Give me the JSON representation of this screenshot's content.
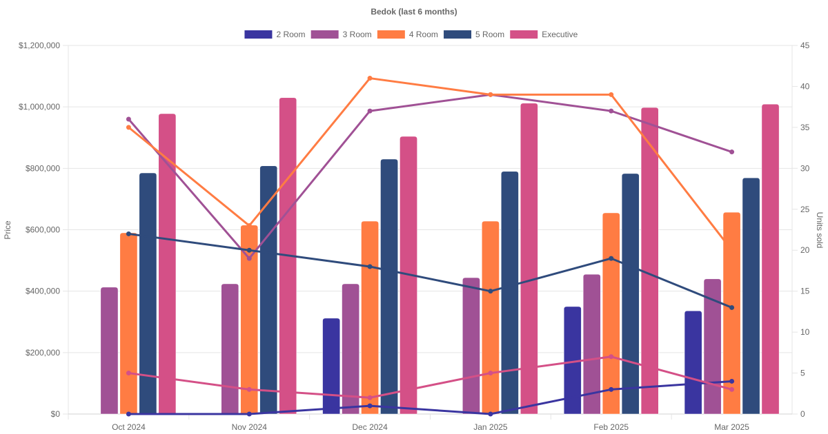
{
  "chart_data": {
    "type": "bar",
    "title": "Bedok (last 6 months)",
    "categories": [
      "Oct 2024",
      "Nov 2024",
      "Dec 2024",
      "Jan 2025",
      "Feb 2025",
      "Mar 2025"
    ],
    "left_axis": {
      "label": "Price",
      "range": [
        0,
        1200000
      ],
      "ticks": [
        "$0",
        "$200,000",
        "$400,000",
        "$600,000",
        "$800,000",
        "$1,000,000",
        "$1,200,000"
      ],
      "tick_values": [
        0,
        200000,
        400000,
        600000,
        800000,
        1000000,
        1200000
      ]
    },
    "right_axis": {
      "label": "Units sold",
      "range": [
        0,
        45
      ],
      "ticks": [
        "0",
        "5",
        "10",
        "15",
        "20",
        "25",
        "30",
        "35",
        "40",
        "45"
      ],
      "tick_values": [
        0,
        5,
        10,
        15,
        20,
        25,
        30,
        35,
        40,
        45
      ]
    },
    "grid": true,
    "legend_position": "top-center",
    "series": [
      {
        "name": "2 Room",
        "color": "#3a35a0",
        "price": [
          null,
          null,
          312000,
          null,
          350000,
          336000
        ],
        "units_sold": [
          0,
          0,
          1,
          0,
          3,
          4
        ]
      },
      {
        "name": "3 Room",
        "color": "#a05195",
        "price": [
          413000,
          424000,
          424000,
          444000,
          455000,
          440000
        ],
        "units_sold": [
          36,
          19,
          37,
          39,
          37,
          32
        ]
      },
      {
        "name": "4 Room",
        "color": "#ff7c43",
        "price": [
          590000,
          615000,
          628000,
          628000,
          655000,
          657000
        ],
        "units_sold": [
          35,
          23,
          41,
          39,
          39,
          20
        ]
      },
      {
        "name": "5 Room",
        "color": "#2f4b7c",
        "price": [
          785000,
          808000,
          830000,
          790000,
          783000,
          769000
        ],
        "units_sold": [
          22,
          20,
          18,
          15,
          19,
          13
        ]
      },
      {
        "name": "Executive",
        "color": "#d45087",
        "price": [
          978000,
          1030000,
          904000,
          1012000,
          998000,
          1009000
        ],
        "units_sold": [
          5,
          3,
          2,
          5,
          7,
          3
        ]
      }
    ]
  }
}
